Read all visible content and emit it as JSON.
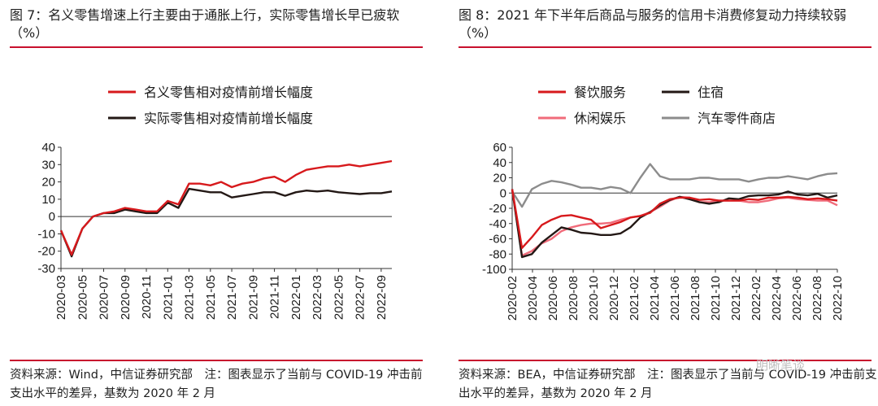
{
  "left": {
    "title": "图 7：名义零售增速上行主要由于通胀上行，实际零售增长早已疲软（%）",
    "source": "资料来源：Wind，中信证券研究部　注：图表显示了当前与 COVID-19 冲击前支出水平的差异，基数为 2020 年 2 月"
  },
  "right": {
    "title": "图 8：2021 年下半年后商品与服务的信用卡消费修复动力持续较弱（%）",
    "source": "资料来源：BEA，中信证券研究部　注：图表显示了当前与 COVID-19 冲击前支出水平的差异，基数为 2020 年 2 月"
  },
  "watermark": "明晰笔谈",
  "chart_data": [
    {
      "type": "line",
      "title": "图 7：名义零售增速上行主要由于通胀上行，实际零售增长早已疲软（%）",
      "ylim": [
        -30,
        40
      ],
      "yticks": [
        -30,
        -20,
        -10,
        0,
        10,
        20,
        30,
        40
      ],
      "xtick_labels": [
        "2020-03",
        "2020-05",
        "2020-07",
        "2020-09",
        "2020-11",
        "2021-01",
        "2021-03",
        "2021-05",
        "2021-07",
        "2021-09",
        "2021-11",
        "2022-01",
        "2022-03",
        "2022-05",
        "2022-07",
        "2022-09"
      ],
      "legend": [
        "名义零售相对疫情前增长幅度",
        "实际零售相对疫情前增长幅度"
      ],
      "series": [
        {
          "name": "名义零售相对疫情前增长幅度",
          "color": "#d7191c",
          "values": [
            -8,
            -22,
            -7,
            0,
            2,
            3,
            5,
            4,
            3,
            3,
            9,
            7,
            19,
            19,
            18,
            20,
            17,
            19,
            20,
            22,
            23,
            20,
            24,
            27,
            28,
            29,
            29,
            30,
            29,
            30,
            31,
            32
          ]
        },
        {
          "name": "实际零售相对疫情前增长幅度",
          "color": "#231815",
          "values": [
            -8,
            -23,
            -7,
            0,
            2,
            2,
            4,
            3,
            2,
            2,
            8,
            5,
            16,
            15,
            14,
            14,
            11,
            12,
            13,
            14,
            14,
            12,
            14,
            15,
            14.5,
            15,
            14,
            13.5,
            13,
            13.5,
            13.5,
            14.5
          ]
        }
      ]
    },
    {
      "type": "line",
      "title": "图 8：2021 年下半年后商品与服务的信用卡消费修复动力持续较弱（%）",
      "ylim": [
        -100,
        60
      ],
      "yticks": [
        -100,
        -80,
        -60,
        -40,
        -20,
        0,
        20,
        40,
        60
      ],
      "xtick_labels": [
        "2020-02",
        "2020-04",
        "2020-06",
        "2020-08",
        "2020-10",
        "2020-12",
        "2021-02",
        "2021-04",
        "2021-06",
        "2021-08",
        "2021-10",
        "2021-12",
        "2022-02",
        "2022-04",
        "2022-06",
        "2022-08",
        "2022-10"
      ],
      "legend": [
        "餐饮服务",
        "住宿",
        "休闲娱乐",
        "汽车零件商店"
      ],
      "series": [
        {
          "name": "餐饮服务",
          "color": "#d7191c",
          "values": [
            5,
            -72,
            -58,
            -42,
            -35,
            -30,
            -29,
            -32,
            -35,
            -46,
            -42,
            -38,
            -32,
            -30,
            -26,
            -14,
            -8,
            -6,
            -6,
            -9,
            -8,
            -10,
            -10,
            -10,
            -8,
            -9,
            -6,
            -6,
            -5,
            -6,
            -8,
            -7,
            -8,
            -10
          ]
        },
        {
          "name": "住宿",
          "color": "#231815",
          "values": [
            5,
            -84,
            -80,
            -65,
            -55,
            -45,
            -48,
            -52,
            -53,
            -55,
            -55,
            -53,
            -45,
            -32,
            -25,
            -16,
            -9,
            -5,
            -8,
            -12,
            -14,
            -12,
            -7,
            -8,
            -4,
            -3,
            -3,
            -2,
            2,
            -2,
            -3,
            -1,
            -6,
            -3
          ]
        },
        {
          "name": "休闲娱乐",
          "color": "#f06b7a",
          "values": [
            5,
            -82,
            -76,
            -66,
            -60,
            -50,
            -45,
            -42,
            -40,
            -40,
            -39,
            -35,
            -32,
            -30,
            -25,
            -18,
            -10,
            -5,
            -6,
            -12,
            -12,
            -10,
            -10,
            -10,
            -12,
            -12,
            -10,
            -7,
            -6,
            -8,
            -9,
            -10,
            -10,
            -16
          ]
        },
        {
          "name": "汽车零件商店",
          "color": "#8c8c8c",
          "values": [
            2,
            -18,
            5,
            12,
            16,
            14,
            11,
            7,
            7,
            5,
            8,
            6,
            0,
            20,
            38,
            22,
            18,
            18,
            18,
            20,
            20,
            18,
            18,
            18,
            15,
            18,
            20,
            20,
            22,
            20,
            18,
            22,
            25,
            26
          ]
        }
      ]
    }
  ]
}
